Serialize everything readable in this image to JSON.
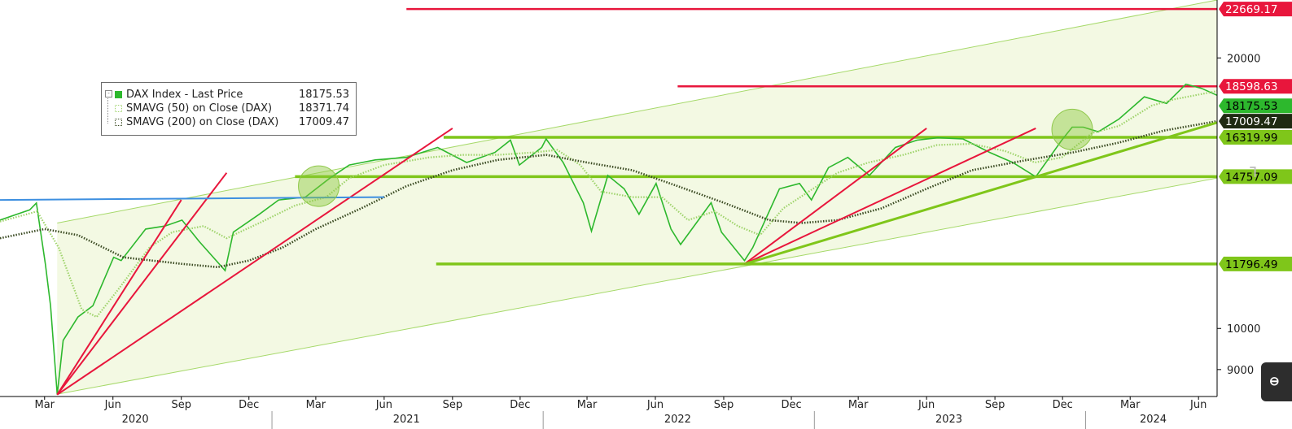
{
  "chart_data": {
    "type": "line",
    "title": "",
    "y_scale": "log",
    "ylim": [
      8400,
      23200
    ],
    "xlim": [
      "2020-01-01",
      "2024-06-26"
    ],
    "y_ticks": [
      9000,
      10000,
      20000
    ],
    "y_tick_labels": [
      "9000",
      "10000",
      "20000"
    ],
    "x_tick_labels": [
      "Mar",
      "Jun",
      "Sep",
      "Dec",
      "Mar",
      "Jun",
      "Sep",
      "Dec",
      "Mar",
      "Jun",
      "Sep",
      "Dec",
      "Mar",
      "Jun",
      "Sep",
      "Dec",
      "Mar",
      "Jun"
    ],
    "x_tick_dates": [
      "2020-03-01",
      "2020-06-01",
      "2020-09-01",
      "2020-12-01",
      "2021-03-01",
      "2021-06-01",
      "2021-09-01",
      "2021-12-01",
      "2022-03-01",
      "2022-06-01",
      "2022-09-01",
      "2022-12-01",
      "2023-03-01",
      "2023-06-01",
      "2023-09-01",
      "2023-12-01",
      "2024-03-01",
      "2024-06-01"
    ],
    "year_labels": [
      "2020",
      "2021",
      "2022",
      "2023",
      "2024"
    ],
    "year_dates": [
      "2020-07-01",
      "2021-07-01",
      "2022-07-01",
      "2023-07-01",
      "2024-04-01"
    ],
    "year_separators": [
      "2021-01-01",
      "2022-01-01",
      "2023-01-01",
      "2024-01-01"
    ],
    "legend": [
      {
        "name": "DAX Index - Last Price",
        "value": "18175.53",
        "color": "#2db82d"
      },
      {
        "name": "SMAVG (50)  on Close (DAX)",
        "value": "18371.74",
        "color": "#9ed36a"
      },
      {
        "name": "SMAVG (200)  on Close (DAX)",
        "value": "17009.47",
        "color": "#3a4a22"
      }
    ],
    "series": [
      {
        "name": "DAX Index - Last Price",
        "color": "#2db82d",
        "points": [
          [
            "2020-01-01",
            13200
          ],
          [
            "2020-02-10",
            13550
          ],
          [
            "2020-02-19",
            13790
          ],
          [
            "2020-03-02",
            11800
          ],
          [
            "2020-03-09",
            10600
          ],
          [
            "2020-03-18",
            8440
          ],
          [
            "2020-03-26",
            9700
          ],
          [
            "2020-04-15",
            10300
          ],
          [
            "2020-05-05",
            10600
          ],
          [
            "2020-06-02",
            12000
          ],
          [
            "2020-06-12",
            11900
          ],
          [
            "2020-07-15",
            12900
          ],
          [
            "2020-08-10",
            13000
          ],
          [
            "2020-09-02",
            13200
          ],
          [
            "2020-09-25",
            12500
          ],
          [
            "2020-10-30",
            11600
          ],
          [
            "2020-11-10",
            12800
          ],
          [
            "2020-12-15",
            13400
          ],
          [
            "2021-01-10",
            13900
          ],
          [
            "2021-02-15",
            14000
          ],
          [
            "2021-03-20",
            14700
          ],
          [
            "2021-04-15",
            15200
          ],
          [
            "2021-05-20",
            15400
          ],
          [
            "2021-07-01",
            15500
          ],
          [
            "2021-08-12",
            15900
          ],
          [
            "2021-09-20",
            15300
          ],
          [
            "2021-10-28",
            15700
          ],
          [
            "2021-11-18",
            16200
          ],
          [
            "2021-11-30",
            15200
          ],
          [
            "2021-12-30",
            15900
          ],
          [
            "2022-01-05",
            16250
          ],
          [
            "2022-01-28",
            15300
          ],
          [
            "2022-02-24",
            13800
          ],
          [
            "2022-03-07",
            12830
          ],
          [
            "2022-03-29",
            14800
          ],
          [
            "2022-04-20",
            14300
          ],
          [
            "2022-05-10",
            13400
          ],
          [
            "2022-06-02",
            14500
          ],
          [
            "2022-06-22",
            12900
          ],
          [
            "2022-07-05",
            12400
          ],
          [
            "2022-08-15",
            13800
          ],
          [
            "2022-08-29",
            12800
          ],
          [
            "2022-09-29",
            11900
          ],
          [
            "2022-10-10",
            12300
          ],
          [
            "2022-11-15",
            14300
          ],
          [
            "2022-12-12",
            14500
          ],
          [
            "2022-12-28",
            13900
          ],
          [
            "2023-01-20",
            15100
          ],
          [
            "2023-02-15",
            15500
          ],
          [
            "2023-03-16",
            14800
          ],
          [
            "2023-04-20",
            15900
          ],
          [
            "2023-05-19",
            16200
          ],
          [
            "2023-06-16",
            16300
          ],
          [
            "2023-07-20",
            16250
          ],
          [
            "2023-08-25",
            15700
          ],
          [
            "2023-09-25",
            15300
          ],
          [
            "2023-10-26",
            14750
          ],
          [
            "2023-11-30",
            16200
          ],
          [
            "2023-12-14",
            16750
          ],
          [
            "2023-12-29",
            16750
          ],
          [
            "2024-01-18",
            16550
          ],
          [
            "2024-02-15",
            17100
          ],
          [
            "2024-03-20",
            18100
          ],
          [
            "2024-04-19",
            17800
          ],
          [
            "2024-05-15",
            18700
          ],
          [
            "2024-06-05",
            18500
          ],
          [
            "2024-06-26",
            18175
          ]
        ]
      },
      {
        "name": "SMAVG (50)  on Close (DAX)",
        "color": "#9ed36a",
        "points": [
          [
            "2020-01-01",
            13150
          ],
          [
            "2020-02-20",
            13500
          ],
          [
            "2020-03-20",
            12300
          ],
          [
            "2020-04-20",
            10500
          ],
          [
            "2020-05-10",
            10300
          ],
          [
            "2020-06-10",
            11100
          ],
          [
            "2020-07-20",
            12300
          ],
          [
            "2020-08-20",
            12800
          ],
          [
            "2020-10-01",
            13000
          ],
          [
            "2020-11-01",
            12600
          ],
          [
            "2020-12-15",
            13100
          ],
          [
            "2021-02-01",
            13700
          ],
          [
            "2021-03-15",
            14000
          ],
          [
            "2021-04-15",
            14700
          ],
          [
            "2021-06-01",
            15200
          ],
          [
            "2021-08-01",
            15500
          ],
          [
            "2021-09-15",
            15600
          ],
          [
            "2021-11-01",
            15600
          ],
          [
            "2021-12-20",
            15700
          ],
          [
            "2022-01-20",
            15800
          ],
          [
            "2022-02-20",
            15200
          ],
          [
            "2022-03-20",
            14200
          ],
          [
            "2022-05-01",
            14000
          ],
          [
            "2022-06-10",
            14000
          ],
          [
            "2022-07-15",
            13200
          ],
          [
            "2022-08-20",
            13500
          ],
          [
            "2022-09-20",
            13000
          ],
          [
            "2022-10-20",
            12700
          ],
          [
            "2022-11-20",
            13600
          ],
          [
            "2022-12-30",
            14300
          ],
          [
            "2023-02-01",
            14900
          ],
          [
            "2023-03-15",
            15300
          ],
          [
            "2023-05-01",
            15600
          ],
          [
            "2023-06-15",
            16000
          ],
          [
            "2023-08-01",
            16050
          ],
          [
            "2023-09-15",
            15750
          ],
          [
            "2023-10-25",
            15300
          ],
          [
            "2023-11-30",
            15500
          ],
          [
            "2024-01-10",
            16500
          ],
          [
            "2024-02-15",
            16800
          ],
          [
            "2024-03-30",
            17700
          ],
          [
            "2024-05-01",
            18000
          ],
          [
            "2024-06-26",
            18371
          ]
        ]
      },
      {
        "name": "SMAVG (200)  on Close (DAX)",
        "color": "#3a4a22",
        "points": [
          [
            "2020-01-01",
            12600
          ],
          [
            "2020-03-01",
            12900
          ],
          [
            "2020-04-15",
            12700
          ],
          [
            "2020-06-15",
            12000
          ],
          [
            "2020-09-01",
            11800
          ],
          [
            "2020-10-20",
            11700
          ],
          [
            "2020-12-01",
            11900
          ],
          [
            "2021-01-15",
            12300
          ],
          [
            "2021-03-01",
            12900
          ],
          [
            "2021-05-01",
            13600
          ],
          [
            "2021-07-01",
            14400
          ],
          [
            "2021-09-01",
            15000
          ],
          [
            "2021-11-01",
            15400
          ],
          [
            "2022-01-05",
            15600
          ],
          [
            "2022-03-01",
            15300
          ],
          [
            "2022-05-01",
            15000
          ],
          [
            "2022-07-01",
            14400
          ],
          [
            "2022-09-01",
            13800
          ],
          [
            "2022-11-01",
            13200
          ],
          [
            "2022-12-15",
            13100
          ],
          [
            "2023-02-01",
            13200
          ],
          [
            "2023-04-01",
            13600
          ],
          [
            "2023-06-01",
            14300
          ],
          [
            "2023-08-01",
            15000
          ],
          [
            "2023-10-15",
            15400
          ],
          [
            "2023-12-15",
            15700
          ],
          [
            "2024-02-15",
            16100
          ],
          [
            "2024-04-15",
            16600
          ],
          [
            "2024-06-26",
            17009
          ]
        ]
      }
    ],
    "price_labels": [
      {
        "value": "22669.17",
        "kind": "resistance"
      },
      {
        "value": "18598.63",
        "kind": "resistance"
      },
      {
        "value": "18175.53",
        "kind": "last"
      },
      {
        "value": "17009.47",
        "kind": "sma200"
      },
      {
        "value": "16319.99",
        "kind": "support"
      },
      {
        "value": "14757.09",
        "kind": "support"
      },
      {
        "value": "11796.49",
        "kind": "support"
      }
    ],
    "horizontal_lines": [
      {
        "value": 22669.17,
        "from": "2021-07-01",
        "color": "#e8163c"
      },
      {
        "value": 18598.63,
        "from": "2022-07-01",
        "color": "#e8163c"
      },
      {
        "value": 16319.99,
        "from": "2021-08-20",
        "color": "#7fc61a"
      },
      {
        "value": 14757.09,
        "from": "2021-02-01",
        "color": "#7fc61a"
      },
      {
        "value": 11796.49,
        "from": "2021-08-10",
        "color": "#7fc61a"
      }
    ],
    "trend_lines": [
      {
        "from": [
          "2020-03-18",
          8440
        ],
        "to": [
          "2020-09-01",
          13900
        ],
        "color": "#e8163c"
      },
      {
        "from": [
          "2020-03-18",
          8440
        ],
        "to": [
          "2020-11-01",
          14900
        ],
        "color": "#e8163c"
      },
      {
        "from": [
          "2020-03-18",
          8440
        ],
        "to": [
          "2021-09-01",
          16700
        ],
        "color": "#e8163c"
      },
      {
        "from": [
          "2022-09-29",
          11796
        ],
        "to": [
          "2023-06-01",
          16700
        ],
        "color": "#e8163c"
      },
      {
        "from": [
          "2022-09-29",
          11796
        ],
        "to": [
          "2023-10-26",
          16700
        ],
        "color": "#e8163c"
      },
      {
        "from": [
          "2022-09-29",
          11796
        ],
        "to": [
          "2024-06-26",
          16950
        ],
        "color": "#7fc61a"
      },
      {
        "from": [
          "2020-01-01",
          13900
        ],
        "to": [
          "2021-06-01",
          14000
        ],
        "color": "#3d8fe0"
      }
    ],
    "channel": {
      "lower": [
        [
          "2020-03-18",
          8450
        ],
        [
          "2024-06-26",
          14700
        ]
      ],
      "upper": [
        [
          "2020-03-18",
          13100
        ],
        [
          "2024-06-26",
          23200
        ]
      ],
      "fill": "#f3f9e3",
      "edge": "#a6d96a"
    },
    "highlight_circles": [
      {
        "date": "2021-03-05",
        "value": 14400
      },
      {
        "date": "2023-12-14",
        "value": 16650
      }
    ],
    "grid": false,
    "legend_position": "top-left"
  }
}
